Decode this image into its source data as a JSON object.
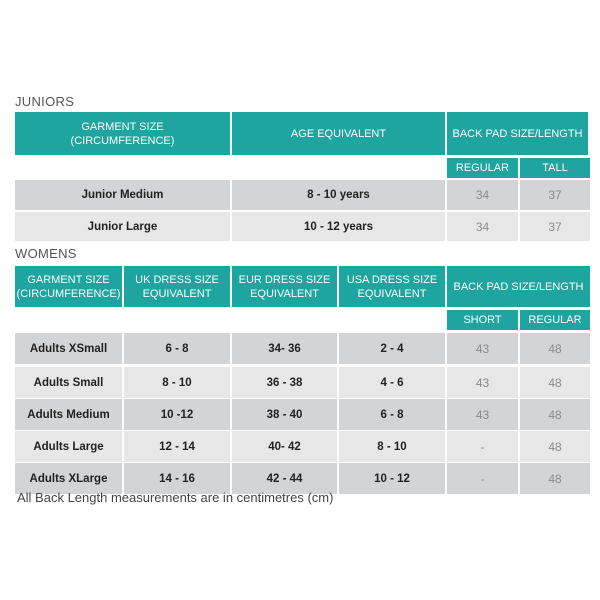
{
  "juniors": {
    "title": "JUNIORS",
    "headers": [
      "GARMENT SIZE\n(CIRCUMFERENCE)",
      "AGE EQUIVALENT",
      "BACK PAD SIZE/LENGTH"
    ],
    "subheaders": [
      "REGULAR",
      "TALL"
    ],
    "rows": [
      [
        "Junior Medium",
        "8 - 10 years",
        "34",
        "37"
      ],
      [
        "Junior Large",
        "10 - 12 years",
        "34",
        "37"
      ]
    ]
  },
  "womens": {
    "title": "WOMENS",
    "headers": [
      "GARMENT SIZE\n(CIRCUMFERENCE)",
      "UK DRESS SIZE\nEQUIVALENT",
      "EUR DRESS SIZE\nEQUIVALENT",
      "USA DRESS SIZE\nEQUIVALENT",
      "BACK PAD SIZE/LENGTH"
    ],
    "subheaders": [
      "SHORT",
      "REGULAR"
    ],
    "rows": [
      [
        "Adults XSmall",
        "6 - 8",
        "34- 36",
        "2 - 4",
        "43",
        "48"
      ],
      [
        "Adults Small",
        "8 - 10",
        "36 - 38",
        "4 - 6",
        "43",
        "48"
      ],
      [
        "Adults Medium",
        "10 -12",
        "38 - 40",
        "6 - 8",
        "43",
        "48"
      ],
      [
        "Adults Large",
        "12 - 14",
        "40- 42",
        "8 - 10",
        "-",
        "48"
      ],
      [
        "Adults XLarge",
        "14 - 16",
        "42 - 44",
        "10 - 12",
        "-",
        "48"
      ]
    ]
  },
  "footnote": "All Back Length measurements are in centimetres (cm)",
  "colors": {
    "header": "#1fa5a0",
    "row_dark": "#d3d4d5",
    "row_light": "#e7e7e8"
  }
}
